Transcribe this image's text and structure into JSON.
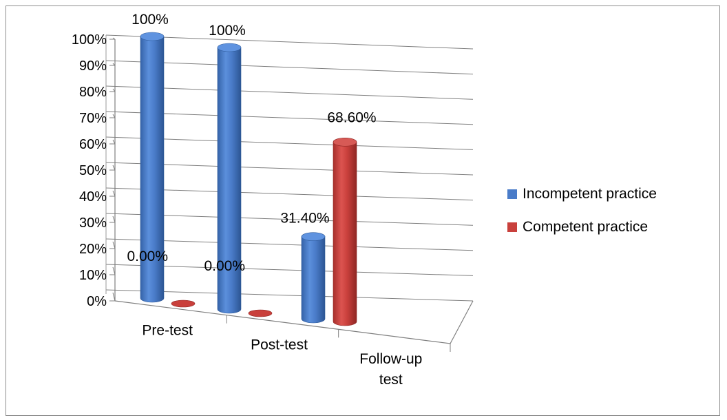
{
  "chart_data": {
    "type": "bar",
    "title": "",
    "xlabel": "",
    "ylabel": "",
    "ylim": [
      0,
      100
    ],
    "yticks": [
      "0%",
      "10%",
      "20%",
      "30%",
      "40%",
      "50%",
      "60%",
      "70%",
      "80%",
      "90%",
      "100%"
    ],
    "categories": [
      [
        "Pre-test"
      ],
      [
        "Post-test"
      ],
      [
        "Follow-up",
        "test"
      ]
    ],
    "series": [
      {
        "name": "Incompetent practice",
        "color": "#4a7cc9",
        "values": [
          100,
          100,
          31.4
        ],
        "labels": [
          "100%",
          "100%",
          "31.40%"
        ]
      },
      {
        "name": "Competent practice",
        "color": "#c9403c",
        "values": [
          0,
          0,
          68.6
        ],
        "labels": [
          "0.00%",
          "0.00%",
          "68.60%"
        ]
      }
    ],
    "legend": "right",
    "grid": true,
    "style": "3d-cylinder"
  }
}
